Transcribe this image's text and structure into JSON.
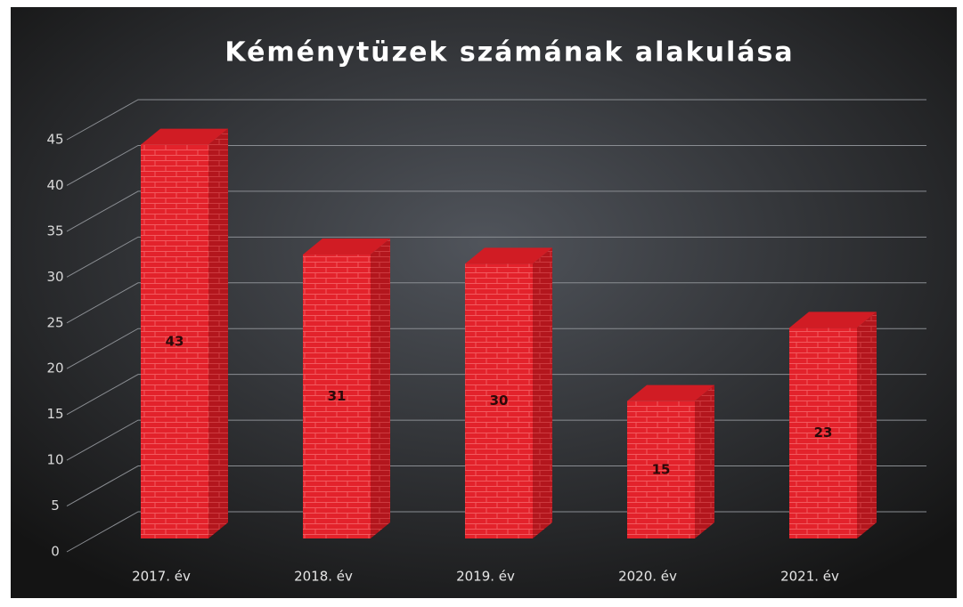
{
  "chart_data": {
    "type": "bar",
    "title": "Kéménytüzek számának alakulása",
    "categories": [
      "2017. év",
      "2018. év",
      "2019. év",
      "2020. év",
      "2021. év"
    ],
    "values": [
      43,
      31,
      30,
      15,
      23
    ],
    "color": "#e3222b",
    "ylim": [
      0,
      45
    ],
    "yticks": [
      0,
      5,
      10,
      15,
      20,
      25,
      30,
      35,
      40,
      45
    ],
    "grid": true
  }
}
